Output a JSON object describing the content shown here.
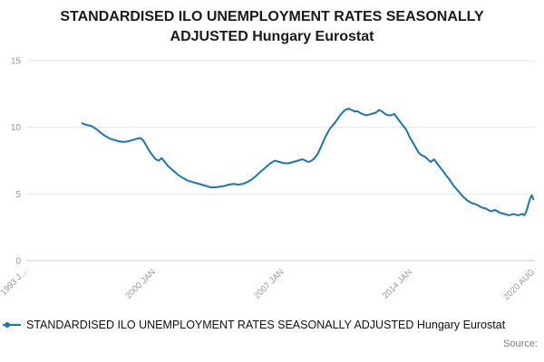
{
  "title": "STANDARDISED ILO UNEMPLOYMENT RATES SEASONALLY ADJUSTED Hungary Eurostat",
  "legend": {
    "label": "STANDARDISED ILO UNEMPLOYMENT RATES SEASONALLY ADJUSTED Hungary Eurostat"
  },
  "source_label": "Source:",
  "colors": {
    "line": "#1776bb",
    "grid": "#e6e6e6",
    "axis_line": "#cccccc",
    "axis_text": "#999999",
    "title_text": "#1a1a1a"
  },
  "chart_data": {
    "type": "line",
    "title": "STANDARDISED ILO UNEMPLOYMENT RATES SEASONALLY ADJUSTED Hungary Eurostat",
    "xlabel": "",
    "ylabel": "",
    "xlim": [
      1993.0,
      2020.67
    ],
    "ylim": [
      0,
      15
    ],
    "grid": true,
    "legend_position": "bottom",
    "yticks": [
      0,
      5,
      10,
      15
    ],
    "xticks": [
      {
        "value": 1993.0,
        "label": "1993 J..."
      },
      {
        "value": 2000.0,
        "label": "2000 JAN"
      },
      {
        "value": 2007.0,
        "label": "2007 JAN"
      },
      {
        "value": 2014.0,
        "label": "2014 JAN"
      },
      {
        "value": 2020.67,
        "label": "2020 AUG"
      }
    ],
    "series": [
      {
        "name": "STANDARDISED ILO UNEMPLOYMENT RATES SEASONALLY ADJUSTED Hungary Eurostat",
        "color": "#1776bb",
        "points": [
          [
            1996.0,
            10.3
          ],
          [
            1996.17,
            10.2
          ],
          [
            1996.33,
            10.15
          ],
          [
            1996.5,
            10.1
          ],
          [
            1996.67,
            9.95
          ],
          [
            1996.83,
            9.8
          ],
          [
            1997.0,
            9.6
          ],
          [
            1997.25,
            9.35
          ],
          [
            1997.5,
            9.15
          ],
          [
            1997.75,
            9.05
          ],
          [
            1998.0,
            8.95
          ],
          [
            1998.25,
            8.9
          ],
          [
            1998.5,
            8.95
          ],
          [
            1998.75,
            9.05
          ],
          [
            1999.0,
            9.15
          ],
          [
            1999.17,
            9.2
          ],
          [
            1999.33,
            9.0
          ],
          [
            1999.5,
            8.6
          ],
          [
            1999.67,
            8.2
          ],
          [
            1999.83,
            7.9
          ],
          [
            2000.0,
            7.6
          ],
          [
            2000.17,
            7.5
          ],
          [
            2000.33,
            7.7
          ],
          [
            2000.5,
            7.4
          ],
          [
            2000.67,
            7.1
          ],
          [
            2000.83,
            6.9
          ],
          [
            2001.0,
            6.7
          ],
          [
            2001.25,
            6.4
          ],
          [
            2001.5,
            6.2
          ],
          [
            2001.75,
            6.0
          ],
          [
            2002.0,
            5.9
          ],
          [
            2002.25,
            5.8
          ],
          [
            2002.5,
            5.7
          ],
          [
            2002.75,
            5.6
          ],
          [
            2003.0,
            5.5
          ],
          [
            2003.25,
            5.5
          ],
          [
            2003.5,
            5.55
          ],
          [
            2003.75,
            5.6
          ],
          [
            2004.0,
            5.7
          ],
          [
            2004.25,
            5.75
          ],
          [
            2004.5,
            5.7
          ],
          [
            2004.75,
            5.75
          ],
          [
            2005.0,
            5.9
          ],
          [
            2005.25,
            6.1
          ],
          [
            2005.5,
            6.4
          ],
          [
            2005.75,
            6.7
          ],
          [
            2006.0,
            7.0
          ],
          [
            2006.25,
            7.3
          ],
          [
            2006.5,
            7.5
          ],
          [
            2006.75,
            7.4
          ],
          [
            2007.0,
            7.3
          ],
          [
            2007.25,
            7.3
          ],
          [
            2007.5,
            7.4
          ],
          [
            2007.75,
            7.5
          ],
          [
            2008.0,
            7.6
          ],
          [
            2008.17,
            7.5
          ],
          [
            2008.33,
            7.4
          ],
          [
            2008.5,
            7.5
          ],
          [
            2008.67,
            7.7
          ],
          [
            2008.83,
            8.0
          ],
          [
            2009.0,
            8.5
          ],
          [
            2009.25,
            9.3
          ],
          [
            2009.5,
            9.9
          ],
          [
            2009.75,
            10.3
          ],
          [
            2010.0,
            10.8
          ],
          [
            2010.17,
            11.1
          ],
          [
            2010.33,
            11.3
          ],
          [
            2010.5,
            11.4
          ],
          [
            2010.67,
            11.3
          ],
          [
            2010.83,
            11.2
          ],
          [
            2011.0,
            11.2
          ],
          [
            2011.25,
            11.0
          ],
          [
            2011.5,
            10.9
          ],
          [
            2011.75,
            11.0
          ],
          [
            2012.0,
            11.1
          ],
          [
            2012.17,
            11.3
          ],
          [
            2012.33,
            11.2
          ],
          [
            2012.5,
            11.0
          ],
          [
            2012.67,
            10.9
          ],
          [
            2012.83,
            10.9
          ],
          [
            2013.0,
            11.0
          ],
          [
            2013.17,
            10.7
          ],
          [
            2013.33,
            10.4
          ],
          [
            2013.5,
            10.1
          ],
          [
            2013.67,
            9.8
          ],
          [
            2013.83,
            9.3
          ],
          [
            2014.0,
            8.9
          ],
          [
            2014.17,
            8.5
          ],
          [
            2014.33,
            8.1
          ],
          [
            2014.5,
            7.9
          ],
          [
            2014.67,
            7.8
          ],
          [
            2014.83,
            7.6
          ],
          [
            2015.0,
            7.4
          ],
          [
            2015.17,
            7.6
          ],
          [
            2015.33,
            7.3
          ],
          [
            2015.5,
            7.0
          ],
          [
            2015.67,
            6.7
          ],
          [
            2015.83,
            6.4
          ],
          [
            2016.0,
            6.1
          ],
          [
            2016.25,
            5.6
          ],
          [
            2016.5,
            5.2
          ],
          [
            2016.75,
            4.8
          ],
          [
            2017.0,
            4.5
          ],
          [
            2017.25,
            4.3
          ],
          [
            2017.5,
            4.2
          ],
          [
            2017.75,
            4.0
          ],
          [
            2018.0,
            3.9
          ],
          [
            2018.25,
            3.7
          ],
          [
            2018.5,
            3.8
          ],
          [
            2018.75,
            3.6
          ],
          [
            2019.0,
            3.5
          ],
          [
            2019.25,
            3.4
          ],
          [
            2019.5,
            3.5
          ],
          [
            2019.75,
            3.4
          ],
          [
            2020.0,
            3.5
          ],
          [
            2020.08,
            3.4
          ],
          [
            2020.17,
            3.6
          ],
          [
            2020.25,
            3.9
          ],
          [
            2020.33,
            4.3
          ],
          [
            2020.42,
            4.7
          ],
          [
            2020.5,
            4.9
          ],
          [
            2020.58,
            4.6
          ]
        ]
      }
    ]
  }
}
